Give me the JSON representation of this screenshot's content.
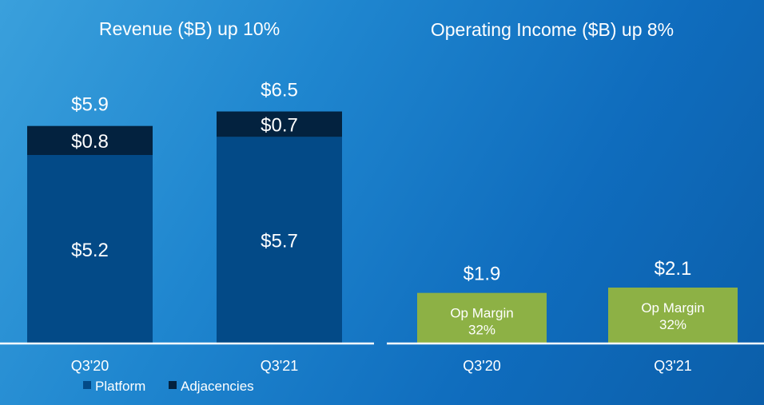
{
  "chart_data": [
    {
      "type": "bar",
      "stacked": true,
      "title": "Revenue ($B) up 10%",
      "categories": [
        "Q3'20",
        "Q3'21"
      ],
      "series": [
        {
          "name": "Platform",
          "values": [
            5.2,
            5.7
          ],
          "labels": [
            "$5.2",
            "$5.7"
          ],
          "color": "#034a87"
        },
        {
          "name": "Adjacencies",
          "values": [
            0.8,
            0.7
          ],
          "labels": [
            "$0.8",
            "$0.7"
          ],
          "color": "#03223f"
        }
      ],
      "totals": [
        5.9,
        6.5
      ],
      "total_labels": [
        "$5.9",
        "$6.5"
      ],
      "ylim": [
        0,
        6.5
      ],
      "grid": false,
      "legend_position": "bottom-left"
    },
    {
      "type": "bar",
      "title": "Operating Income ($B) up 8%",
      "categories": [
        "Q3'20",
        "Q3'21"
      ],
      "values": [
        1.9,
        2.1
      ],
      "value_labels": [
        "$1.9",
        "$2.1"
      ],
      "bar_text": [
        [
          "Op Margin",
          "32%"
        ],
        [
          "Op Margin",
          "32%"
        ]
      ],
      "color": "#8db145",
      "ylim": [
        0,
        2.1
      ],
      "grid": false
    }
  ],
  "colors": {
    "background": "#1a7fcc",
    "platform": "#034a87",
    "adjacencies": "#03223f",
    "op_income": "#8db145",
    "axis": "#ffffff"
  }
}
